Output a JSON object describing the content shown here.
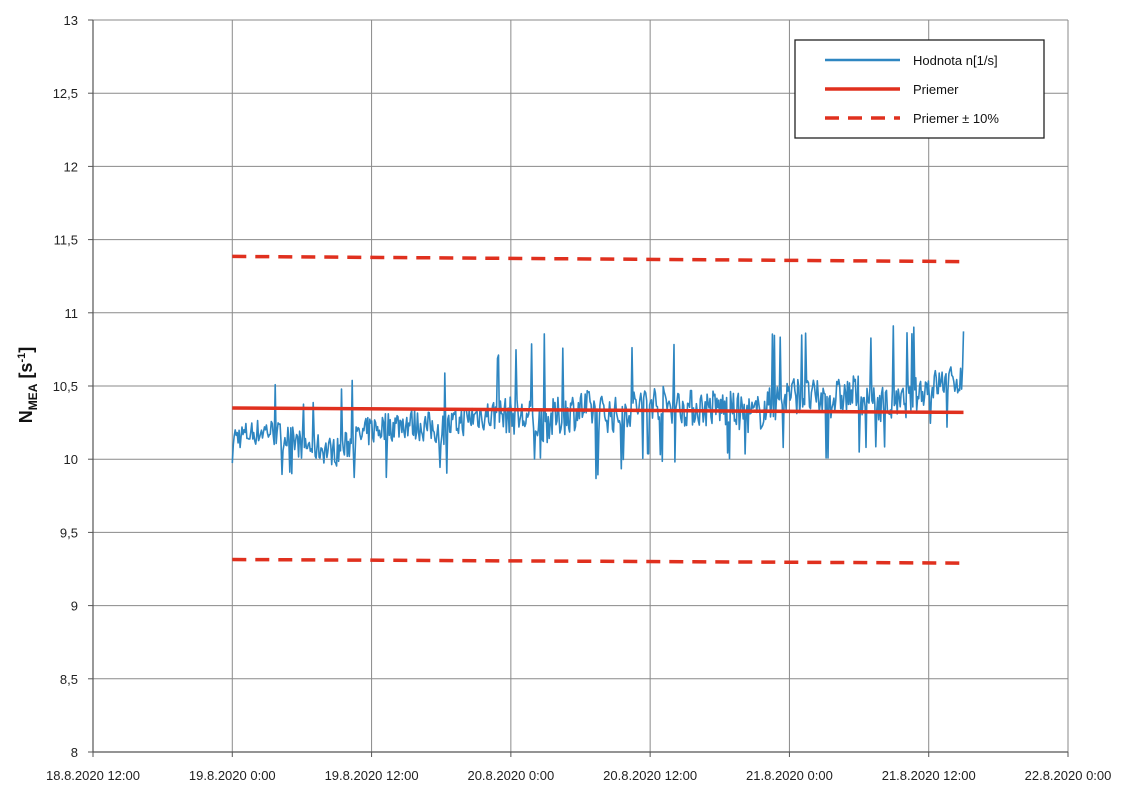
{
  "chart_data": {
    "type": "line",
    "title": "",
    "xlabel": "",
    "ylabel": {
      "main": "N",
      "sub": "MEA",
      "unit_open": " [s",
      "unit_exp": "-1",
      "unit_close": "]"
    },
    "xlim": [
      "2020-08-18T12:00",
      "2020-08-22T00:00"
    ],
    "ylim": [
      8,
      13
    ],
    "grid": true,
    "legend_position": "top-right",
    "x_ticks": [
      {
        "value": "2020-08-18T12:00",
        "label": "18.8.2020 12:00"
      },
      {
        "value": "2020-08-19T00:00",
        "label": "19.8.2020 0:00"
      },
      {
        "value": "2020-08-19T12:00",
        "label": "19.8.2020 12:00"
      },
      {
        "value": "2020-08-20T00:00",
        "label": "20.8.2020 0:00"
      },
      {
        "value": "2020-08-20T12:00",
        "label": "20.8.2020 12:00"
      },
      {
        "value": "2020-08-21T00:00",
        "label": "21.8.2020 0:00"
      },
      {
        "value": "2020-08-21T12:00",
        "label": "21.8.2020 12:00"
      },
      {
        "value": "2020-08-22T00:00",
        "label": "22.8.2020 0:00"
      }
    ],
    "y_ticks": [
      {
        "value": 8,
        "label": "8"
      },
      {
        "value": 8.5,
        "label": "8,5"
      },
      {
        "value": 9,
        "label": "9"
      },
      {
        "value": 9.5,
        "label": "9,5"
      },
      {
        "value": 10,
        "label": "10"
      },
      {
        "value": 10.5,
        "label": "10,5"
      },
      {
        "value": 11,
        "label": "11"
      },
      {
        "value": 11.5,
        "label": "11,5"
      },
      {
        "value": 12,
        "label": "12"
      },
      {
        "value": 12.5,
        "label": "12,5"
      },
      {
        "value": 13,
        "label": "13"
      }
    ],
    "series": [
      {
        "name": "Hodnota n[1/s]",
        "style": "solid",
        "color": "#2e86c1",
        "x": [
          "2020-08-19T00:00",
          "2020-08-19T03:00",
          "2020-08-19T06:00",
          "2020-08-19T09:00",
          "2020-08-19T12:00",
          "2020-08-19T15:00",
          "2020-08-19T18:00",
          "2020-08-19T21:00",
          "2020-08-20T00:00",
          "2020-08-20T03:00",
          "2020-08-20T06:00",
          "2020-08-20T09:00",
          "2020-08-20T12:00",
          "2020-08-20T15:00",
          "2020-08-20T18:00",
          "2020-08-20T21:00",
          "2020-08-21T00:00",
          "2020-08-21T03:00",
          "2020-08-21T06:00",
          "2020-08-21T09:00",
          "2020-08-21T12:00",
          "2020-08-21T15:00"
        ],
        "y": [
          10.15,
          10.2,
          10.1,
          10.05,
          10.2,
          10.25,
          10.2,
          10.3,
          10.3,
          10.25,
          10.35,
          10.3,
          10.4,
          10.35,
          10.35,
          10.3,
          10.45,
          10.4,
          10.45,
          10.35,
          10.5,
          10.55
        ],
        "min_band": [
          9.9,
          9.95,
          9.78,
          9.85,
          9.9,
          9.82,
          9.88,
          9.95,
          9.9,
          9.95,
          9.8,
          9.9,
          10.0,
          9.95,
          9.98,
          10.0,
          10.05,
          10.0,
          9.98,
          10.1,
          10.2,
          10.22
        ],
        "max_band": [
          10.5,
          10.55,
          10.45,
          10.5,
          10.6,
          10.55,
          10.6,
          10.65,
          10.75,
          10.9,
          10.7,
          10.75,
          10.8,
          10.8,
          10.85,
          10.85,
          10.9,
          10.85,
          10.9,
          10.92,
          10.95,
          10.9
        ]
      },
      {
        "name": "Priemer",
        "style": "solid",
        "color": "#e0301e",
        "x": [
          "2020-08-19T00:00",
          "2020-08-21T15:00"
        ],
        "y": [
          10.35,
          10.32
        ]
      },
      {
        "name": "Priemer ± 10%",
        "style": "dashed",
        "color": "#e0301e",
        "x": [
          "2020-08-19T00:00",
          "2020-08-21T15:00"
        ],
        "y": [
          11.385,
          11.35
        ]
      },
      {
        "name": "",
        "style": "dashed",
        "color": "#e0301e",
        "x": [
          "2020-08-19T00:00",
          "2020-08-21T15:00"
        ],
        "y": [
          9.315,
          9.29
        ]
      }
    ]
  }
}
